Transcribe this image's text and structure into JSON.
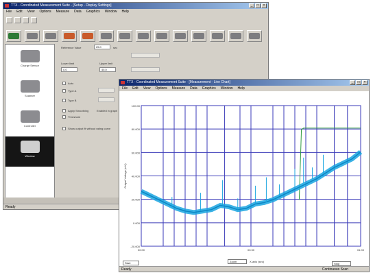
{
  "main_window": {
    "title": "TTX - Coordinated Measurement Suite - [Setup - Display Settings]",
    "menu": [
      "File",
      "Edit",
      "View",
      "Options",
      "Measure",
      "Data",
      "Graphics",
      "Window",
      "Help"
    ],
    "status": "Ready",
    "sidebar": [
      {
        "label": "Charge Sensor"
      },
      {
        "label": "Scanner"
      },
      {
        "label": "Controller"
      },
      {
        "label": "Window"
      }
    ],
    "form": {
      "reference_label": "Reference Value",
      "reference_value": "25.0",
      "reference_unit": "sec",
      "lower_label": "Lower limit",
      "lower_value": "0.0",
      "upper_label": "Upper limit",
      "upper_value": "45.0",
      "option_a": "Auto",
      "option_b": "Type A",
      "option_c": "Type B",
      "check_1": "Apply Smoothing",
      "check_1_note": "Enabled in graph",
      "check_2": "Threshold",
      "check_3": "Show output fit without rating curve"
    }
  },
  "chart_window": {
    "title": "TTX - Coordinated Measurement Suite - [Measurement - Live Chart]",
    "menu": [
      "File",
      "Edit",
      "View",
      "Options",
      "Measure",
      "Data",
      "Graphics",
      "Window",
      "Help"
    ],
    "status": "Ready",
    "status_right": "Continuous Scan",
    "bottom_left_box": "Start",
    "bottom_center_box": "Zoom",
    "bottom_center_note": "X-axis (sec)",
    "bottom_right_box": "Stop",
    "ylabel": "Output Voltage (mV)"
  },
  "colors": {
    "grid": "#3a3ab8",
    "trace": "#19a5e0",
    "threshold": "#2e9a3e",
    "title_start": "#0a246a",
    "title_end": "#a6caf0"
  },
  "chart_data": {
    "type": "line",
    "title": "",
    "xlabel": "",
    "ylabel": "Output Voltage (mV)",
    "xlim": [
      0,
      100
    ],
    "ylim": [
      0,
      100
    ],
    "x_ticks": [
      "00:00",
      "00:30",
      "01:00"
    ],
    "y_ticks": [
      "100.00",
      "80.000",
      "60.000",
      "40.000",
      "20.000",
      "0.000",
      "-20.000"
    ],
    "grid": true,
    "series": [
      {
        "x": [
          0,
          4,
          8,
          12,
          16,
          20,
          24,
          28,
          32,
          36,
          40,
          44,
          48,
          52,
          56,
          60,
          64,
          68,
          72,
          76,
          80,
          84,
          88,
          92,
          96,
          100
        ],
        "y": [
          39,
          36,
          33,
          30,
          27,
          25,
          24,
          25,
          26,
          29,
          28,
          26,
          27,
          30,
          31,
          33,
          36,
          39,
          42,
          45,
          48,
          52,
          56,
          59,
          62,
          67
        ]
      },
      {
        "x": [
          72,
          73,
          74,
          100
        ],
        "y": [
          33,
          83,
          84,
          84
        ]
      }
    ]
  }
}
